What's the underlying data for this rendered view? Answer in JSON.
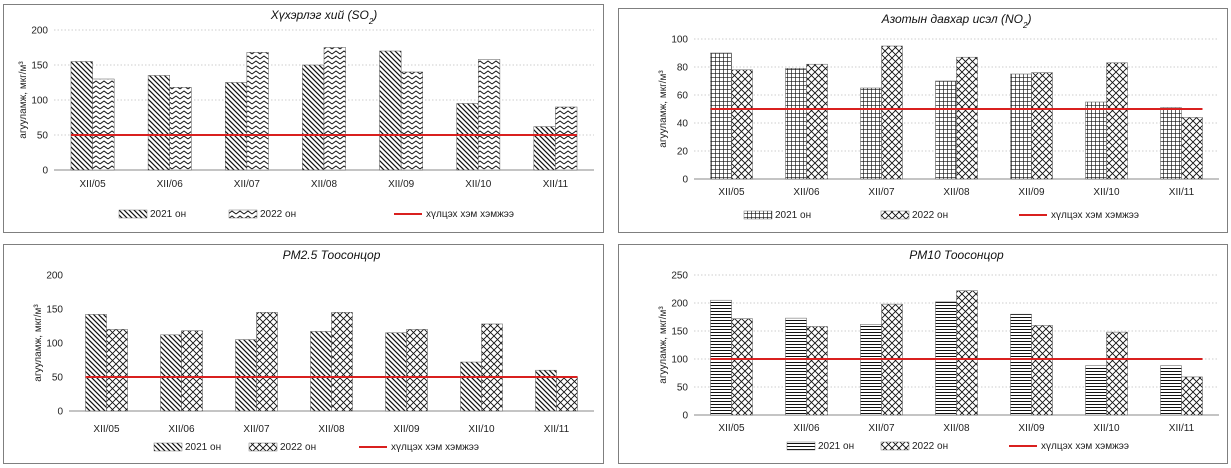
{
  "chart_data": [
    {
      "type": "bar",
      "title": "Хүхэрлэг хий (SO",
      "title_sub": "2",
      "title_end": ")",
      "ylabel": "агууламж, мкг/м³",
      "ylim": [
        0,
        200
      ],
      "yticks": [
        0,
        50,
        100,
        150,
        200
      ],
      "categories": [
        "XII/05",
        "XII/06",
        "XII/07",
        "XII/08",
        "XII/09",
        "XII/10",
        "XII/11"
      ],
      "series": [
        {
          "name": "2021 он",
          "values": [
            155,
            135,
            125,
            150,
            170,
            95,
            62
          ],
          "pattern": "diag"
        },
        {
          "name": "2022 он",
          "values": [
            130,
            118,
            168,
            175,
            140,
            158,
            90
          ],
          "pattern": "zigzag"
        }
      ],
      "threshold": {
        "name": "хүлцэх хэм хэмжээ",
        "value": 50,
        "color": "#d9201f"
      },
      "grid": "horizontal-dotted"
    },
    {
      "type": "bar",
      "title": "Азотын давхар исэл (NO",
      "title_sub": "2",
      "title_end": ")",
      "ylabel": "агууламж, мкг/м³",
      "ylim": [
        0,
        100
      ],
      "yticks": [
        0,
        20,
        40,
        60,
        80,
        100
      ],
      "categories": [
        "XII/05",
        "XII/06",
        "XII/07",
        "XII/08",
        "XII/09",
        "XII/10",
        "XII/11"
      ],
      "series": [
        {
          "name": "2021 он",
          "values": [
            90,
            79,
            65,
            70,
            75,
            55,
            51
          ],
          "pattern": "grid"
        },
        {
          "name": "2022 он",
          "values": [
            78,
            82,
            95,
            87,
            76,
            83,
            44
          ],
          "pattern": "xdiag"
        }
      ],
      "threshold": {
        "name": "хүлцэх хэм хэмжээ",
        "value": 50,
        "color": "#d9201f"
      },
      "grid": "horizontal-dotted"
    },
    {
      "type": "bar",
      "title": "PM2.5 Тоосонцор",
      "title_sub": "",
      "title_end": "",
      "ylabel": "агууламж, мкг/м³",
      "ylim": [
        0,
        200
      ],
      "yticks": [
        0,
        50,
        100,
        150,
        200
      ],
      "categories": [
        "XII/05",
        "XII/06",
        "XII/07",
        "XII/08",
        "XII/09",
        "XII/10",
        "XII/11"
      ],
      "series": [
        {
          "name": "2021 он",
          "values": [
            142,
            112,
            105,
            117,
            115,
            72,
            60
          ],
          "pattern": "diag"
        },
        {
          "name": "2022 он",
          "values": [
            120,
            118,
            145,
            145,
            120,
            128,
            50
          ],
          "pattern": "xdiag"
        }
      ],
      "threshold": {
        "name": "хүлцэх хэм хэмжээ",
        "value": 50,
        "color": "#d9201f"
      },
      "grid": "none"
    },
    {
      "type": "bar",
      "title": "PM10 Тоосонцор",
      "title_sub": "",
      "title_end": "",
      "ylabel": "агууламж, мкг/м³",
      "ylim": [
        0,
        250
      ],
      "yticks": [
        0,
        50,
        100,
        150,
        200,
        250
      ],
      "categories": [
        "XII/05",
        "XII/06",
        "XII/07",
        "XII/08",
        "XII/09",
        "XII/10",
        "XII/11"
      ],
      "series": [
        {
          "name": "2021 он",
          "values": [
            205,
            173,
            162,
            202,
            180,
            88,
            88
          ],
          "pattern": "hlines"
        },
        {
          "name": "2022 он",
          "values": [
            172,
            158,
            198,
            222,
            160,
            148,
            68
          ],
          "pattern": "xdiag"
        }
      ],
      "threshold": {
        "name": "хүлцэх хэм хэмжээ",
        "value": 100,
        "color": "#d9201f"
      },
      "grid": "horizontal-dotted"
    }
  ]
}
